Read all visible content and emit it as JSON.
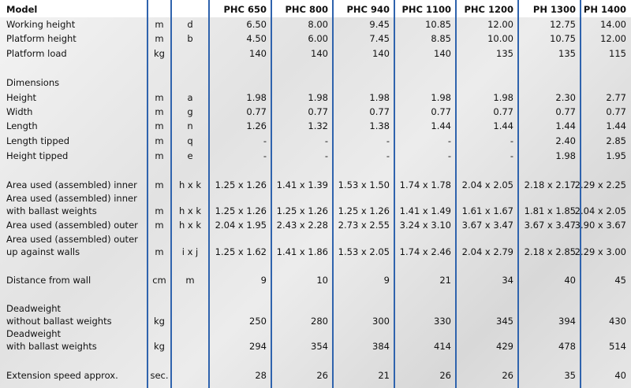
{
  "header": {
    "label": "Model",
    "models": [
      "PHC 650",
      "PHC 800",
      "PHC 940",
      "PHC 1100",
      "PHC 1200",
      "PH 1300",
      "PH 1400"
    ]
  },
  "rows": [
    {
      "label": [
        "Working height"
      ],
      "unit": "m",
      "symbol": "d",
      "values": [
        "6.50",
        "8.00",
        "9.45",
        "10.85",
        "12.00",
        "12.75",
        "14.00"
      ]
    },
    {
      "label": [
        "Platform height"
      ],
      "unit": "m",
      "symbol": "b",
      "values": [
        "4.50",
        "6.00",
        "7.45",
        "8.85",
        "10.00",
        "10.75",
        "12.00"
      ]
    },
    {
      "label": [
        "Platform load"
      ],
      "unit": "kg",
      "values": [
        "140",
        "140",
        "140",
        "140",
        "135",
        "135",
        "115"
      ]
    },
    {
      "label": [
        "Dimensions"
      ]
    },
    {
      "label": [
        "Height"
      ],
      "unit": "m",
      "symbol": "a",
      "values": [
        "1.98",
        "1.98",
        "1.98",
        "1.98",
        "1.98",
        "2.30",
        "2.77"
      ]
    },
    {
      "label": [
        "Width"
      ],
      "unit": "m",
      "symbol": "g",
      "values": [
        "0.77",
        "0.77",
        "0.77",
        "0.77",
        "0.77",
        "0.77",
        "0.77"
      ]
    },
    {
      "label": [
        "Length"
      ],
      "unit": "m",
      "symbol": "n",
      "values": [
        "1.26",
        "1.32",
        "1.38",
        "1.44",
        "1.44",
        "1.44",
        "1.44"
      ]
    },
    {
      "label": [
        "Length tipped"
      ],
      "unit": "m",
      "symbol": "q",
      "values": [
        "-",
        "-",
        "-",
        "-",
        "-",
        "2.40",
        "2.85"
      ]
    },
    {
      "label": [
        "Height tipped"
      ],
      "unit": "m",
      "symbol": "e",
      "values": [
        "-",
        "-",
        "-",
        "-",
        "-",
        "1.98",
        "1.95"
      ]
    },
    {
      "label": [
        "Area used (assembled) inner"
      ],
      "unit": "m",
      "symbol": "h x k",
      "values": [
        "1.25 x 1.26",
        "1.41 x 1.39",
        "1.53 x 1.50",
        "1.74 x 1.78",
        "2.04 x 2.05",
        "2.18 x 2.17",
        "2.29 x 2.25"
      ]
    },
    {
      "label": [
        "Area used (assembled) inner",
        "with ballast weights"
      ],
      "unit": "m",
      "symbol": "h x k",
      "values": [
        "1.25 x 1.26",
        "1.25 x 1.26",
        "1.25 x 1.26",
        "1.41 x 1.49",
        "1.61 x 1.67",
        "1.81 x 1.85",
        "2.04 x 2.05"
      ]
    },
    {
      "label": [
        "Area used (assembled) outer"
      ],
      "unit": "m",
      "symbol": "h x k",
      "values": [
        "2.04 x 1.95",
        "2.43 x 2.28",
        "2.73 x 2.55",
        "3.24 x 3.10",
        "3.67 x 3.47",
        "3.67 x 3.47",
        "3.90 x 3.67"
      ]
    },
    {
      "label": [
        "Area used (assembled) outer",
        "up against walls"
      ],
      "unit": "m",
      "symbol": "i x j",
      "values": [
        "1.25 x 1.62",
        "1.41 x 1.86",
        "1.53 x 2.05",
        "1.74 x 2.46",
        "2.04 x 2.79",
        "2.18 x 2.85",
        "2.29 x 3.00"
      ]
    },
    {
      "label": [
        "Distance from wall"
      ],
      "unit": "cm",
      "symbol": "m",
      "values": [
        "9",
        "10",
        "9",
        "21",
        "34",
        "40",
        "45"
      ]
    },
    {
      "label": [
        "Deadweight",
        "without ballast weights"
      ],
      "unit": "kg",
      "values": [
        "250",
        "280",
        "300",
        "330",
        "345",
        "394",
        "430"
      ]
    },
    {
      "label": [
        "Deadweight",
        "with ballast weights"
      ],
      "unit": "kg",
      "values": [
        "294",
        "354",
        "384",
        "414",
        "429",
        "478",
        "514"
      ]
    },
    {
      "label": [
        "Extension speed approx."
      ],
      "unit": "sec.",
      "values": [
        "28",
        "26",
        "21",
        "26",
        "26",
        "35",
        "40"
      ]
    }
  ]
}
